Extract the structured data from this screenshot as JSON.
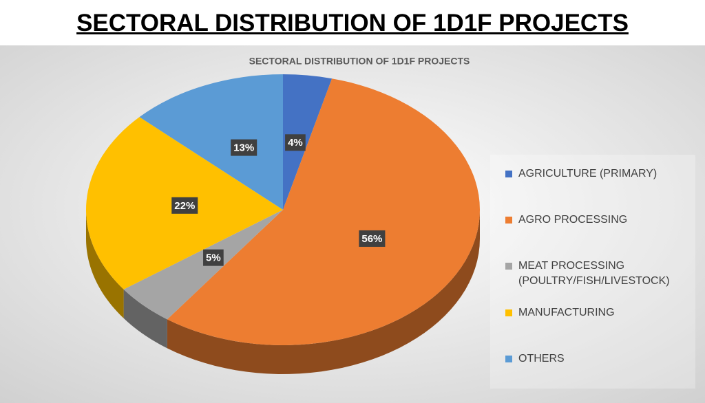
{
  "header": {
    "title": "SECTORAL DISTRIBUTION OF 1D1F PROJECTS"
  },
  "chart_data": {
    "type": "pie",
    "title": "SECTORAL DISTRIBUTION OF 1D1F PROJECTS",
    "categories": [
      "AGRICULTURE (PRIMARY)",
      "AGRO PROCESSING",
      "MEAT PROCESSING (POULTRY/FISH/LIVESTOCK)",
      "MANUFACTURING",
      "OTHERS"
    ],
    "values": [
      4,
      56,
      5,
      22,
      13
    ],
    "value_labels": [
      "4%",
      "56%",
      "5%",
      "22%",
      "13%"
    ],
    "colors": [
      "#4472c4",
      "#ed7d31",
      "#a5a5a5",
      "#ffc000",
      "#5b9bd5"
    ]
  }
}
